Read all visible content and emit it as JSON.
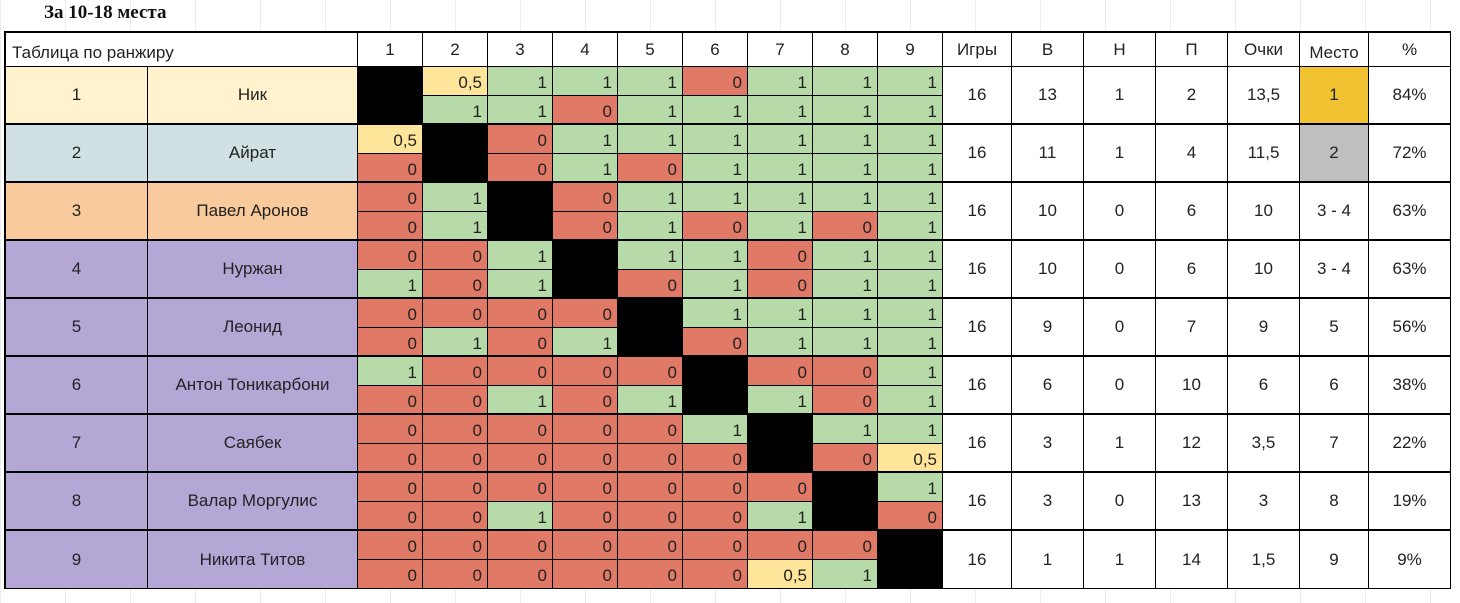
{
  "title": "За 10-18 места",
  "headers": {
    "table_label": "Таблица по ранжиру",
    "columns": [
      "1",
      "2",
      "3",
      "4",
      "5",
      "6",
      "7",
      "8",
      "9"
    ],
    "games": "Игры",
    "wins": "В",
    "draws": "Н",
    "losses": "П",
    "points": "Очки",
    "place": "Место",
    "percent": "%"
  },
  "colors": {
    "win": "#b7dba8",
    "loss": "#e07966",
    "draw": "#ffe599",
    "self": "#000000",
    "gold": "#f1c232",
    "silver": "#bfbfbf",
    "bronze_row": "#f9cb9c",
    "first_row": "#fff2cc",
    "second_row": "#d0e0e3",
    "rest_row": "#b4a7d6"
  },
  "players": [
    {
      "rank": "1",
      "name": "Ник",
      "bg": "#fff2cc",
      "games": "16",
      "w": "13",
      "d": "1",
      "l": "2",
      "points": "13,5",
      "place": "1",
      "place_bg": "#f1c232",
      "pct": "84%",
      "results": [
        [
          "X",
          "0,5",
          "1",
          "1",
          "1",
          "0",
          "1",
          "1",
          "1"
        ],
        [
          "X",
          "1",
          "1",
          "0",
          "1",
          "1",
          "1",
          "1",
          "1"
        ]
      ]
    },
    {
      "rank": "2",
      "name": "Айрат",
      "bg": "#d0e0e3",
      "games": "16",
      "w": "11",
      "d": "1",
      "l": "4",
      "points": "11,5",
      "place": "2",
      "place_bg": "#bfbfbf",
      "pct": "72%",
      "results": [
        [
          "0,5",
          "X",
          "0",
          "1",
          "1",
          "1",
          "1",
          "1",
          "1"
        ],
        [
          "0",
          "X",
          "0",
          "1",
          "0",
          "1",
          "1",
          "1",
          "1"
        ]
      ]
    },
    {
      "rank": "3",
      "name": "Павел Аронов",
      "bg": "#f9cb9c",
      "games": "16",
      "w": "10",
      "d": "0",
      "l": "6",
      "points": "10",
      "place": "3 - 4",
      "place_bg": "#ffffff",
      "pct": "63%",
      "results": [
        [
          "0",
          "1",
          "X",
          "0",
          "1",
          "1",
          "1",
          "1",
          "1"
        ],
        [
          "0",
          "1",
          "X",
          "0",
          "1",
          "0",
          "1",
          "0",
          "1"
        ]
      ]
    },
    {
      "rank": "4",
      "name": "Нуржан",
      "bg": "#b4a7d6",
      "games": "16",
      "w": "10",
      "d": "0",
      "l": "6",
      "points": "10",
      "place": "3 - 4",
      "place_bg": "#ffffff",
      "pct": "63%",
      "results": [
        [
          "0",
          "0",
          "1",
          "X",
          "1",
          "1",
          "0",
          "1",
          "1"
        ],
        [
          "1",
          "0",
          "1",
          "X",
          "0",
          "1",
          "0",
          "1",
          "1"
        ]
      ]
    },
    {
      "rank": "5",
      "name": "Леонид",
      "bg": "#b4a7d6",
      "games": "16",
      "w": "9",
      "d": "0",
      "l": "7",
      "points": "9",
      "place": "5",
      "place_bg": "#ffffff",
      "pct": "56%",
      "results": [
        [
          "0",
          "0",
          "0",
          "0",
          "X",
          "1",
          "1",
          "1",
          "1"
        ],
        [
          "0",
          "1",
          "0",
          "1",
          "X",
          "0",
          "1",
          "1",
          "1"
        ]
      ]
    },
    {
      "rank": "6",
      "name": "Антон Тоникарбони",
      "bg": "#b4a7d6",
      "games": "16",
      "w": "6",
      "d": "0",
      "l": "10",
      "points": "6",
      "place": "6",
      "place_bg": "#ffffff",
      "pct": "38%",
      "results": [
        [
          "1",
          "0",
          "0",
          "0",
          "0",
          "X",
          "0",
          "0",
          "1"
        ],
        [
          "0",
          "0",
          "1",
          "0",
          "1",
          "X",
          "1",
          "0",
          "1"
        ]
      ]
    },
    {
      "rank": "7",
      "name": "Саябек",
      "bg": "#b4a7d6",
      "games": "16",
      "w": "3",
      "d": "1",
      "l": "12",
      "points": "3,5",
      "place": "7",
      "place_bg": "#ffffff",
      "pct": "22%",
      "results": [
        [
          "0",
          "0",
          "0",
          "0",
          "0",
          "1",
          "X",
          "1",
          "1"
        ],
        [
          "0",
          "0",
          "0",
          "0",
          "0",
          "0",
          "X",
          "0",
          "0,5"
        ]
      ]
    },
    {
      "rank": "8",
      "name": "Валар Моргулис",
      "bg": "#b4a7d6",
      "games": "16",
      "w": "3",
      "d": "0",
      "l": "13",
      "points": "3",
      "place": "8",
      "place_bg": "#ffffff",
      "pct": "19%",
      "results": [
        [
          "0",
          "0",
          "0",
          "0",
          "0",
          "0",
          "0",
          "X",
          "1"
        ],
        [
          "0",
          "0",
          "1",
          "0",
          "0",
          "0",
          "1",
          "X",
          "0"
        ]
      ]
    },
    {
      "rank": "9",
      "name": "Никита Титов",
      "bg": "#b4a7d6",
      "games": "16",
      "w": "1",
      "d": "1",
      "l": "14",
      "points": "1,5",
      "place": "9",
      "place_bg": "#ffffff",
      "pct": "9%",
      "results": [
        [
          "0",
          "0",
          "0",
          "0",
          "0",
          "0",
          "0",
          "0",
          "X"
        ],
        [
          "0",
          "0",
          "0",
          "0",
          "0",
          "0",
          "0,5",
          "1",
          "X"
        ]
      ]
    }
  ]
}
